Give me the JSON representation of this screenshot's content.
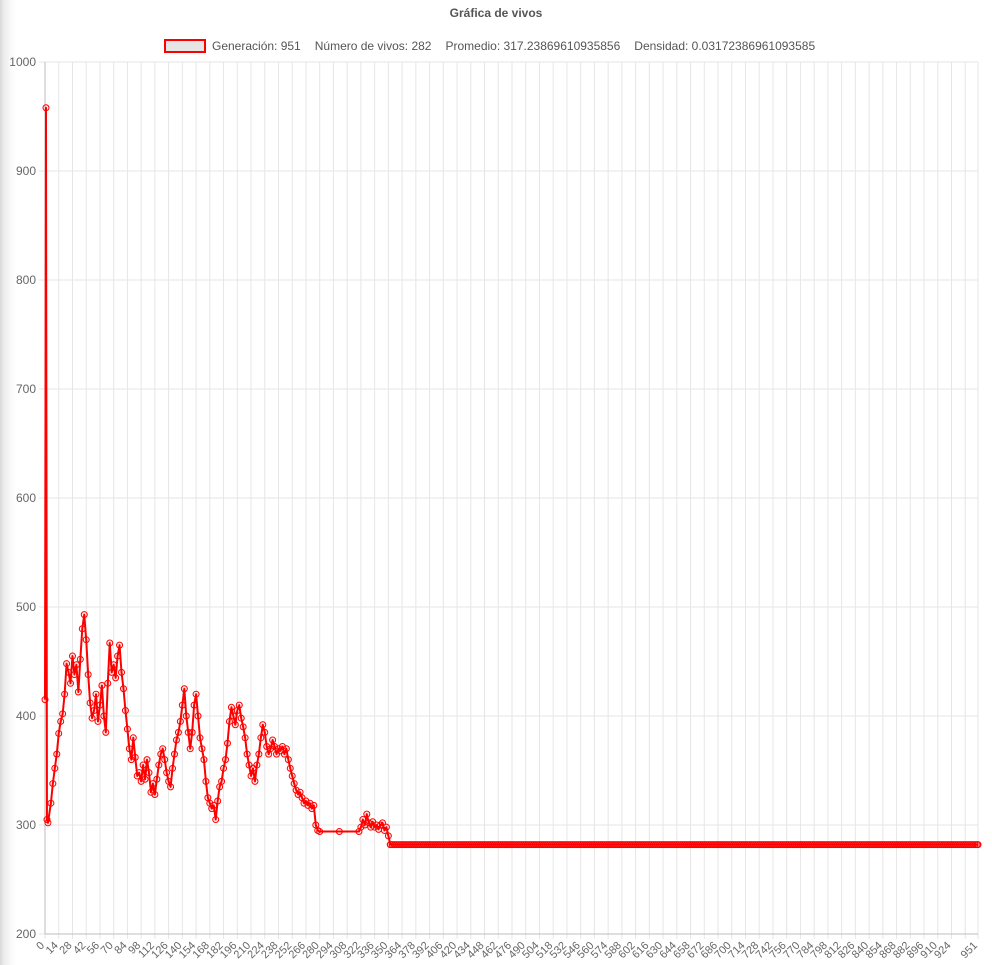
{
  "chart_data": {
    "type": "line",
    "title": "Gráfica de vivos",
    "legend": {
      "position": "top",
      "generation_label": "Generación: 951",
      "alive_label": "Número de vivos: 282",
      "average_label": "Promedio: 317.23869610935856",
      "density_label": "Densidad: 0.03172386961093585",
      "swatch_fill": "#e6e6e6",
      "swatch_border": "#ff0000"
    },
    "series": [
      {
        "color": "#ff0000",
        "keypoints": [
          [
            0,
            415
          ],
          [
            1,
            958
          ],
          [
            2,
            305
          ],
          [
            3,
            302
          ],
          [
            6,
            320
          ],
          [
            8,
            338
          ],
          [
            10,
            352
          ],
          [
            12,
            365
          ],
          [
            14,
            384
          ],
          [
            16,
            395
          ],
          [
            18,
            402
          ],
          [
            20,
            420
          ],
          [
            22,
            448
          ],
          [
            24,
            440
          ],
          [
            26,
            430
          ],
          [
            28,
            455
          ],
          [
            30,
            438
          ],
          [
            32,
            447
          ],
          [
            34,
            422
          ],
          [
            36,
            452
          ],
          [
            38,
            480
          ],
          [
            40,
            493
          ],
          [
            42,
            470
          ],
          [
            44,
            438
          ],
          [
            46,
            412
          ],
          [
            48,
            398
          ],
          [
            50,
            405
          ],
          [
            52,
            420
          ],
          [
            54,
            395
          ],
          [
            56,
            410
          ],
          [
            58,
            428
          ],
          [
            60,
            400
          ],
          [
            62,
            385
          ],
          [
            64,
            430
          ],
          [
            66,
            467
          ],
          [
            68,
            440
          ],
          [
            70,
            447
          ],
          [
            72,
            435
          ],
          [
            74,
            455
          ],
          [
            76,
            465
          ],
          [
            78,
            440
          ],
          [
            80,
            425
          ],
          [
            82,
            405
          ],
          [
            84,
            388
          ],
          [
            86,
            370
          ],
          [
            88,
            360
          ],
          [
            90,
            380
          ],
          [
            92,
            362
          ],
          [
            94,
            345
          ],
          [
            96,
            348
          ],
          [
            98,
            340
          ],
          [
            100,
            355
          ],
          [
            102,
            342
          ],
          [
            104,
            360
          ],
          [
            106,
            348
          ],
          [
            108,
            330
          ],
          [
            110,
            338
          ],
          [
            112,
            328
          ],
          [
            114,
            342
          ],
          [
            116,
            355
          ],
          [
            118,
            365
          ],
          [
            120,
            370
          ],
          [
            122,
            360
          ],
          [
            124,
            348
          ],
          [
            126,
            340
          ],
          [
            128,
            335
          ],
          [
            130,
            352
          ],
          [
            132,
            365
          ],
          [
            134,
            378
          ],
          [
            136,
            385
          ],
          [
            138,
            395
          ],
          [
            140,
            410
          ],
          [
            142,
            425
          ],
          [
            144,
            400
          ],
          [
            146,
            385
          ],
          [
            148,
            370
          ],
          [
            150,
            385
          ],
          [
            152,
            410
          ],
          [
            154,
            420
          ],
          [
            156,
            400
          ],
          [
            158,
            380
          ],
          [
            160,
            370
          ],
          [
            162,
            360
          ],
          [
            164,
            340
          ],
          [
            166,
            325
          ],
          [
            168,
            320
          ],
          [
            170,
            315
          ],
          [
            172,
            318
          ],
          [
            174,
            305
          ],
          [
            176,
            322
          ],
          [
            178,
            335
          ],
          [
            180,
            340
          ],
          [
            182,
            352
          ],
          [
            184,
            360
          ],
          [
            186,
            375
          ],
          [
            188,
            395
          ],
          [
            190,
            408
          ],
          [
            192,
            400
          ],
          [
            194,
            392
          ],
          [
            196,
            405
          ],
          [
            198,
            410
          ],
          [
            200,
            398
          ],
          [
            202,
            390
          ],
          [
            204,
            380
          ],
          [
            206,
            365
          ],
          [
            208,
            355
          ],
          [
            210,
            345
          ],
          [
            212,
            352
          ],
          [
            214,
            340
          ],
          [
            216,
            355
          ],
          [
            218,
            365
          ],
          [
            220,
            380
          ],
          [
            222,
            392
          ],
          [
            224,
            385
          ],
          [
            226,
            372
          ],
          [
            228,
            365
          ],
          [
            230,
            370
          ],
          [
            232,
            378
          ],
          [
            234,
            372
          ],
          [
            236,
            365
          ],
          [
            238,
            370
          ],
          [
            240,
            368
          ],
          [
            242,
            372
          ],
          [
            244,
            365
          ],
          [
            246,
            370
          ],
          [
            248,
            360
          ],
          [
            250,
            352
          ],
          [
            252,
            345
          ],
          [
            254,
            338
          ],
          [
            256,
            332
          ],
          [
            258,
            328
          ],
          [
            260,
            330
          ],
          [
            262,
            325
          ],
          [
            264,
            320
          ],
          [
            266,
            322
          ],
          [
            268,
            318
          ],
          [
            270,
            320
          ],
          [
            272,
            315
          ],
          [
            274,
            318
          ],
          [
            276,
            300
          ],
          [
            278,
            295
          ],
          [
            280,
            294
          ],
          [
            300,
            294
          ],
          [
            320,
            294
          ],
          [
            322,
            298
          ],
          [
            324,
            305
          ],
          [
            326,
            300
          ],
          [
            328,
            310
          ],
          [
            330,
            302
          ],
          [
            332,
            298
          ],
          [
            334,
            303
          ],
          [
            336,
            298
          ],
          [
            338,
            300
          ],
          [
            340,
            296
          ],
          [
            342,
            300
          ],
          [
            344,
            302
          ],
          [
            346,
            295
          ],
          [
            348,
            298
          ],
          [
            350,
            290
          ],
          [
            352,
            282
          ],
          [
            951,
            282
          ]
        ]
      }
    ],
    "x_range": [
      0,
      951
    ],
    "y_range": [
      200,
      1000
    ],
    "y_ticks": [
      200,
      300,
      400,
      500,
      600,
      700,
      800,
      900,
      1000
    ],
    "x_ticks": [
      0,
      14,
      28,
      42,
      56,
      70,
      84,
      98,
      112,
      126,
      140,
      154,
      168,
      182,
      196,
      210,
      224,
      238,
      252,
      266,
      280,
      294,
      308,
      322,
      336,
      350,
      364,
      378,
      392,
      406,
      420,
      434,
      448,
      462,
      476,
      490,
      504,
      518,
      532,
      546,
      560,
      574,
      588,
      602,
      616,
      630,
      644,
      658,
      672,
      686,
      700,
      714,
      728,
      742,
      756,
      770,
      784,
      798,
      812,
      826,
      840,
      854,
      868,
      882,
      896,
      910,
      924,
      951
    ],
    "grid": true
  }
}
